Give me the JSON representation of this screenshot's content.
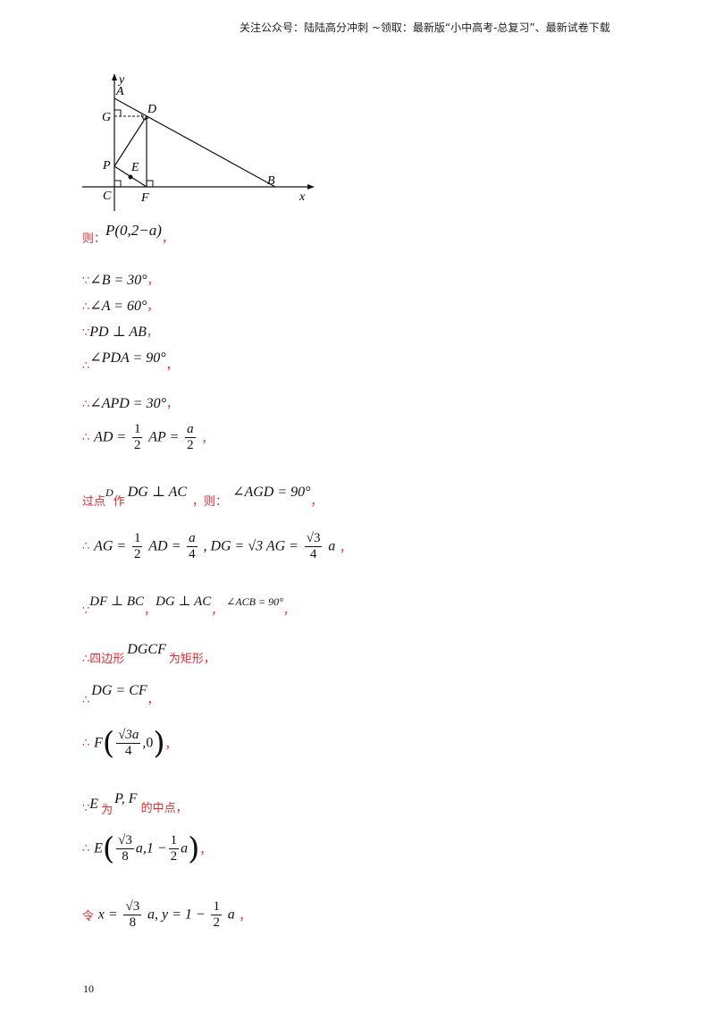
{
  "header": {
    "text": "关注公众号：陆陆高分冲刺 ~领取：最新版“小中高考-总复习”、最新试卷下载"
  },
  "figure": {
    "labels": {
      "y": "y",
      "x": "x",
      "A": "A",
      "D": "D",
      "G": "G",
      "P": "P",
      "E": "E",
      "C": "C",
      "F": "F",
      "B": "B"
    }
  },
  "lines": {
    "l1": {
      "prefix": "则：",
      "expr": "P(0,2−a)",
      "suffix": "，"
    },
    "l2": {
      "symbol": "∵",
      "expr": "∠B = 30°",
      "suffix": "，"
    },
    "l3": {
      "symbol": "∴",
      "expr": "∠A = 60°",
      "suffix": "，"
    },
    "l4": {
      "symbol": "∵",
      "expr": "PD ⊥ AB",
      "suffix": "，"
    },
    "l5": {
      "symbol": "∴",
      "expr": "∠PDA = 90°",
      "suffix": "，"
    },
    "l6": {
      "symbol": "∴",
      "expr": "∠APD = 30°",
      "suffix": "，"
    },
    "l7": {
      "symbol": "∴",
      "lhs": "AD =",
      "f1n": "1",
      "f1d": "2",
      "mid": "AP =",
      "f2n": "a",
      "f2d": "2",
      "suffix": "，"
    },
    "l8": {
      "t1": "过点",
      "D": "D",
      "t2": "作",
      "e1": "DG ⊥ AC",
      "t3": "，则：",
      "e2": "∠AGD = 90°",
      "suffix": "，"
    },
    "l9": {
      "symbol": "∴",
      "a1": "AG =",
      "f1n": "1",
      "f1d": "2",
      "a2": "AD =",
      "f2n": "a",
      "f2d": "4",
      "a3": ", DG = √3 AG =",
      "f3n": "√3",
      "f3d": "4",
      "a4": "a",
      "suffix": "，"
    },
    "l10": {
      "symbol": "∵",
      "e1": "DF ⊥ BC",
      "c1": "，",
      "e2": "DG ⊥ AC",
      "c2": "，",
      "e3": "∠ACB = 90°",
      "suffix": "，"
    },
    "l11": {
      "symbol": "∴",
      "t1": "四边形",
      "expr": "DGCF",
      "t2": "为矩形，"
    },
    "l12": {
      "symbol": "∴",
      "expr": "DG = CF",
      "suffix": "，"
    },
    "l13": {
      "symbol": "∴",
      "F": "F",
      "fn": "√3a",
      "fd": "4",
      "tail": ",0",
      "suffix": "，"
    },
    "l14": {
      "symbol": "∵",
      "E": "E",
      "t1": "为",
      "PF": "P, F",
      "t2": "的中点，"
    },
    "l15": {
      "symbol": "∴",
      "E": "E",
      "fn": "√3",
      "fd": "8",
      "mid": "a,1 −",
      "f2n": "1",
      "f2d": "2",
      "tail": "a",
      "suffix": "，"
    },
    "l16": {
      "prefix": "令",
      "a1": "x =",
      "fn": "√3",
      "fd": "8",
      "a2": "a, y = 1 −",
      "f2n": "1",
      "f2d": "2",
      "a3": "a",
      "suffix": "，"
    }
  },
  "page_number": "10"
}
